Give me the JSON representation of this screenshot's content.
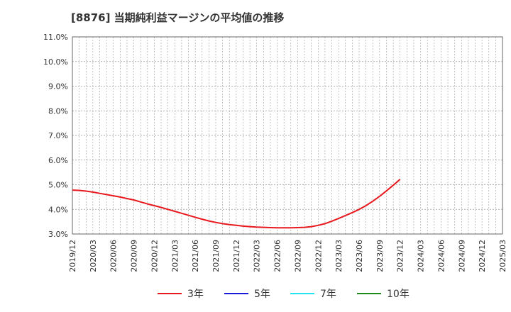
{
  "title": "[8876]  当期純利益マージンの平均値の推移",
  "colors": {
    "series_3": "#e8191e",
    "series_5": "#1a1adc",
    "series_7": "#22e5f0",
    "series_10": "#1b8a1b",
    "grid": "#999999",
    "axis": "#666666"
  },
  "chart_data": {
    "type": "line",
    "title": "[8876]  当期純利益マージンの平均値の推移",
    "xlabel": "",
    "ylabel": "",
    "ylim": [
      3.0,
      11.0
    ],
    "y_ticks": [
      "3.0%",
      "4.0%",
      "5.0%",
      "6.0%",
      "7.0%",
      "8.0%",
      "9.0%",
      "10.0%",
      "11.0%"
    ],
    "x_ticks": [
      "2019/12",
      "2020/03",
      "2020/06",
      "2020/09",
      "2020/12",
      "2021/03",
      "2021/06",
      "2021/09",
      "2021/12",
      "2022/03",
      "2022/06",
      "2022/09",
      "2022/12",
      "2023/03",
      "2023/06",
      "2023/09",
      "2023/12",
      "2024/03",
      "2024/06",
      "2024/09",
      "2024/12",
      "2025/03"
    ],
    "grid": true,
    "legend_position": "bottom",
    "series": [
      {
        "name": "3年",
        "color_key": "series_3",
        "points": [
          [
            "2019/12",
            4.78
          ],
          [
            "2020/01",
            4.77
          ],
          [
            "2020/02",
            4.74
          ],
          [
            "2020/03",
            4.7
          ],
          [
            "2020/04",
            4.65
          ],
          [
            "2020/05",
            4.6
          ],
          [
            "2020/06",
            4.55
          ],
          [
            "2020/07",
            4.5
          ],
          [
            "2020/08",
            4.44
          ],
          [
            "2020/09",
            4.38
          ],
          [
            "2020/10",
            4.3
          ],
          [
            "2020/11",
            4.22
          ],
          [
            "2020/12",
            4.15
          ],
          [
            "2021/01",
            4.08
          ],
          [
            "2021/02",
            4.0
          ],
          [
            "2021/03",
            3.92
          ],
          [
            "2021/04",
            3.84
          ],
          [
            "2021/05",
            3.76
          ],
          [
            "2021/06",
            3.68
          ],
          [
            "2021/07",
            3.6
          ],
          [
            "2021/08",
            3.53
          ],
          [
            "2021/09",
            3.47
          ],
          [
            "2021/10",
            3.42
          ],
          [
            "2021/11",
            3.38
          ],
          [
            "2021/12",
            3.35
          ],
          [
            "2022/01",
            3.32
          ],
          [
            "2022/02",
            3.3
          ],
          [
            "2022/03",
            3.28
          ],
          [
            "2022/04",
            3.27
          ],
          [
            "2022/05",
            3.26
          ],
          [
            "2022/06",
            3.25
          ],
          [
            "2022/07",
            3.25
          ],
          [
            "2022/08",
            3.25
          ],
          [
            "2022/09",
            3.26
          ],
          [
            "2022/10",
            3.27
          ],
          [
            "2022/11",
            3.3
          ],
          [
            "2022/12",
            3.35
          ],
          [
            "2023/01",
            3.42
          ],
          [
            "2023/02",
            3.52
          ],
          [
            "2023/03",
            3.63
          ],
          [
            "2023/04",
            3.75
          ],
          [
            "2023/05",
            3.87
          ],
          [
            "2023/06",
            4.0
          ],
          [
            "2023/07",
            4.15
          ],
          [
            "2023/08",
            4.33
          ],
          [
            "2023/09",
            4.53
          ],
          [
            "2023/10",
            4.75
          ],
          [
            "2023/11",
            4.98
          ],
          [
            "2023/12",
            5.22
          ]
        ]
      }
    ]
  }
}
